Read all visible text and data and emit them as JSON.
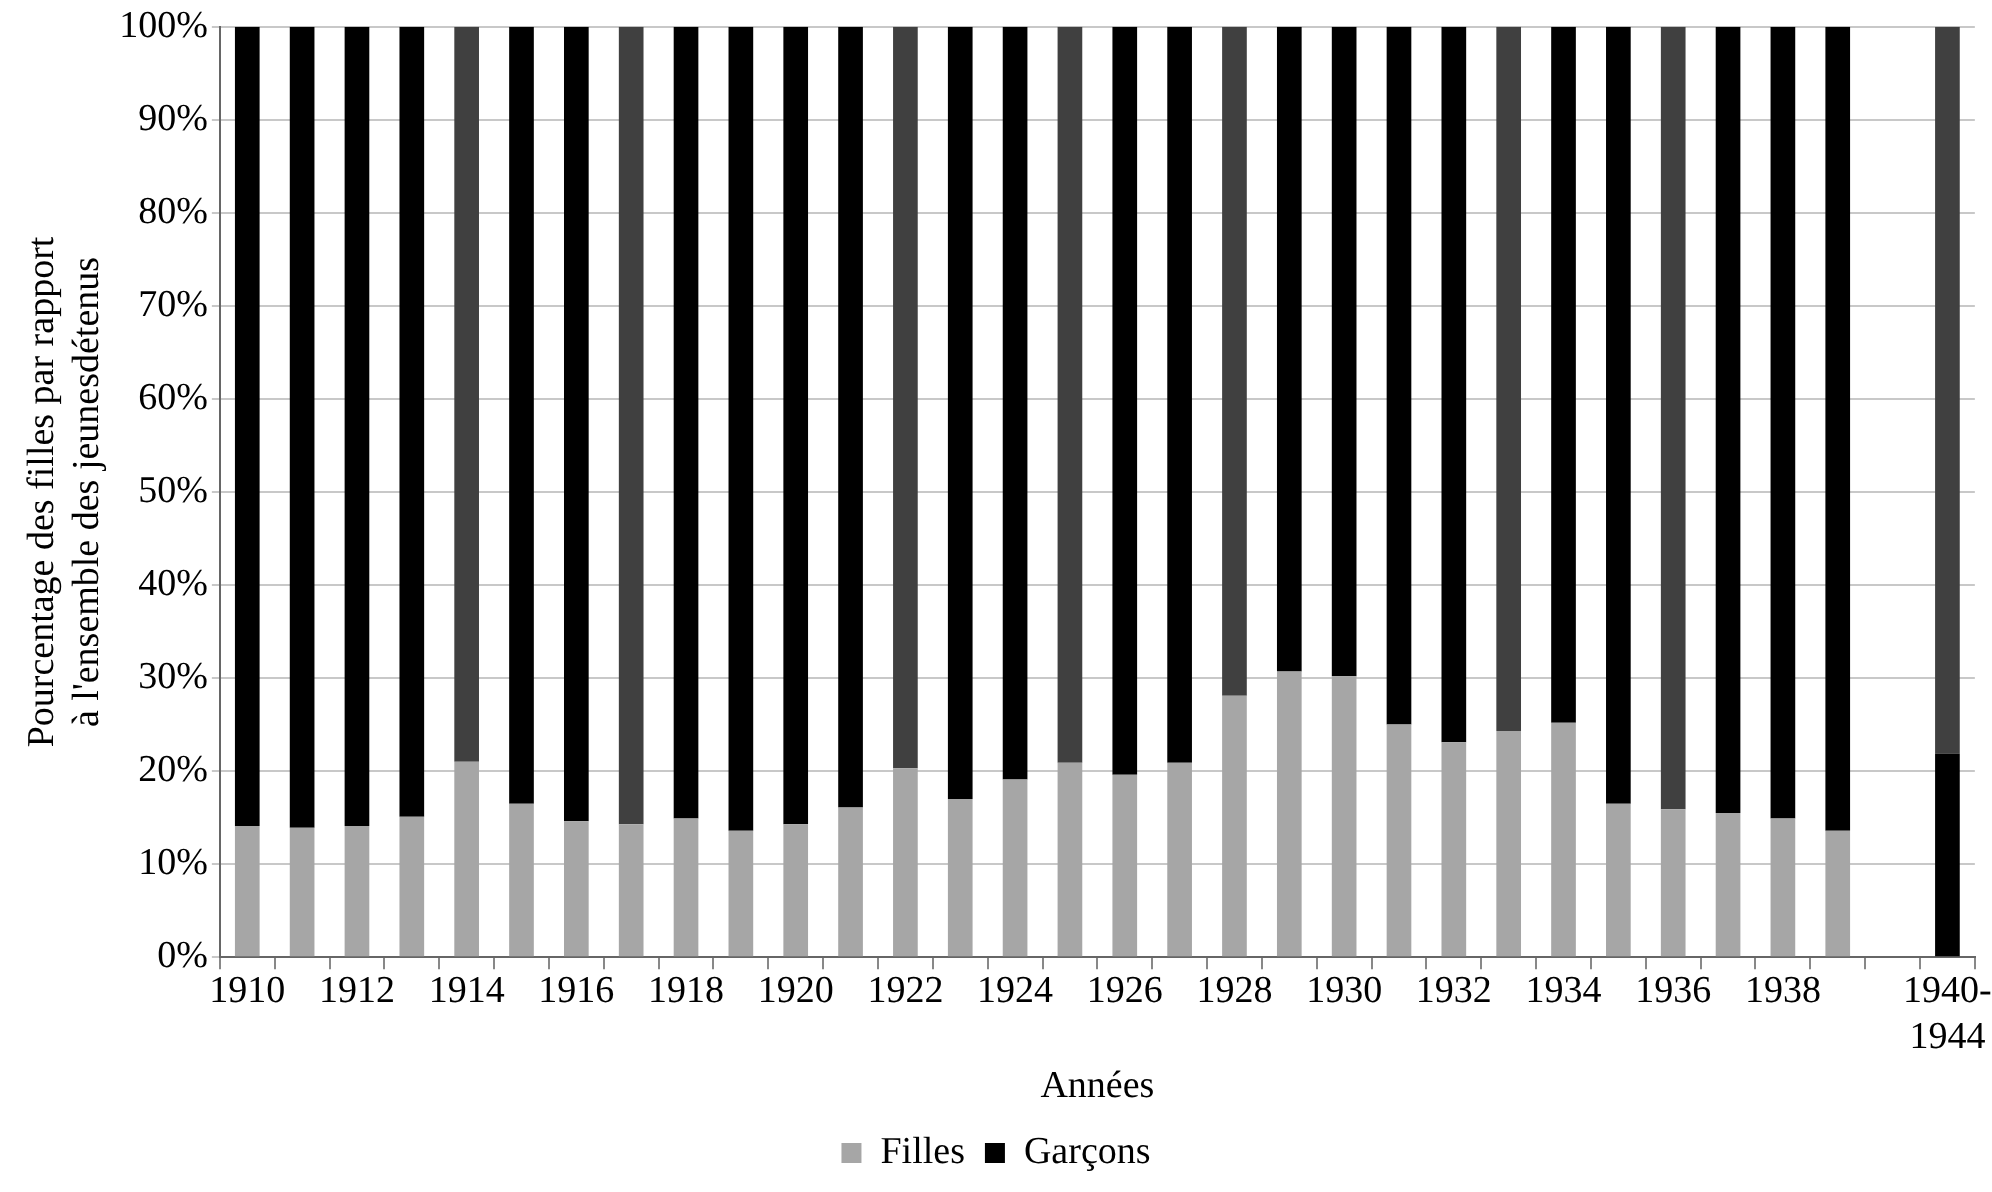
{
  "chart_data": {
    "type": "bar",
    "stacked": true,
    "xlabel": "Années",
    "ylabel": "Pourcentage des filles par rapport\nà l'ensemble des jeunesdétenus",
    "categories": [
      "1910",
      null,
      "1912",
      null,
      "1914",
      null,
      "1916",
      null,
      "1918",
      null,
      "1920",
      null,
      "1922",
      null,
      "1924",
      null,
      "1926",
      null,
      "1928",
      null,
      "1930",
      null,
      "1932",
      null,
      "1934",
      null,
      "1936",
      null,
      "1938",
      null,
      null,
      "1940-\n1944"
    ],
    "series": [
      {
        "name": "Filles",
        "color": "#a6a6a6",
        "colors": [
          "#a6a6a6",
          "#a6a6a6",
          "#a6a6a6",
          "#a6a6a6",
          "#a6a6a6",
          "#a6a6a6",
          "#a6a6a6",
          "#a6a6a6",
          "#a6a6a6",
          "#a6a6a6",
          "#a6a6a6",
          "#a6a6a6",
          "#a6a6a6",
          "#a6a6a6",
          "#a6a6a6",
          "#a6a6a6",
          "#a6a6a6",
          "#a6a6a6",
          "#a6a6a6",
          "#a6a6a6",
          "#a6a6a6",
          "#a6a6a6",
          "#a6a6a6",
          "#a6a6a6",
          "#a6a6a6",
          "#a6a6a6",
          "#a6a6a6",
          "#a6a6a6",
          "#a6a6a6",
          "#a6a6a6",
          "#a6a6a6",
          "#000000"
        ],
        "values": [
          14.1,
          13.9,
          14.1,
          15.1,
          21.0,
          16.5,
          14.6,
          14.3,
          14.9,
          13.6,
          14.3,
          16.1,
          20.3,
          17.0,
          19.1,
          20.9,
          19.6,
          20.9,
          28.1,
          30.7,
          30.2,
          25.0,
          23.1,
          24.3,
          25.2,
          16.5,
          15.9,
          15.5,
          14.9,
          13.6,
          0,
          21.9
        ]
      },
      {
        "name": "Garçons",
        "color": "#000000",
        "colors": [
          "#000000",
          "#000000",
          "#000000",
          "#000000",
          "#404040",
          "#000000",
          "#000000",
          "#404040",
          "#000000",
          "#000000",
          "#000000",
          "#000000",
          "#404040",
          "#000000",
          "#000000",
          "#404040",
          "#000000",
          "#000000",
          "#404040",
          "#000000",
          "#000000",
          "#000000",
          "#000000",
          "#404040",
          "#000000",
          "#000000",
          "#404040",
          "#000000",
          "#000000",
          "#000000",
          "#000000",
          "#404040"
        ],
        "values": [
          85.9,
          86.1,
          85.9,
          84.9,
          79.0,
          83.5,
          85.4,
          85.7,
          85.1,
          86.4,
          85.7,
          83.9,
          79.7,
          83.0,
          80.9,
          79.1,
          80.4,
          79.1,
          71.9,
          69.3,
          69.8,
          75.0,
          76.9,
          75.7,
          74.8,
          83.5,
          84.1,
          84.5,
          85.1,
          86.4,
          null,
          78.1
        ]
      }
    ],
    "ylim": [
      0,
      100
    ],
    "yticks": [
      {
        "value": 0,
        "label": "0%"
      },
      {
        "value": 10,
        "label": "10%"
      },
      {
        "value": 20,
        "label": "20%"
      },
      {
        "value": 30,
        "label": "30%"
      },
      {
        "value": 40,
        "label": "40%"
      },
      {
        "value": 50,
        "label": "50%"
      },
      {
        "value": 60,
        "label": "60%"
      },
      {
        "value": 70,
        "label": "70%"
      },
      {
        "value": 80,
        "label": "80%"
      },
      {
        "value": 90,
        "label": "90%"
      },
      {
        "value": 100,
        "label": "100%"
      }
    ],
    "grid": "y",
    "legend": "bottom"
  }
}
